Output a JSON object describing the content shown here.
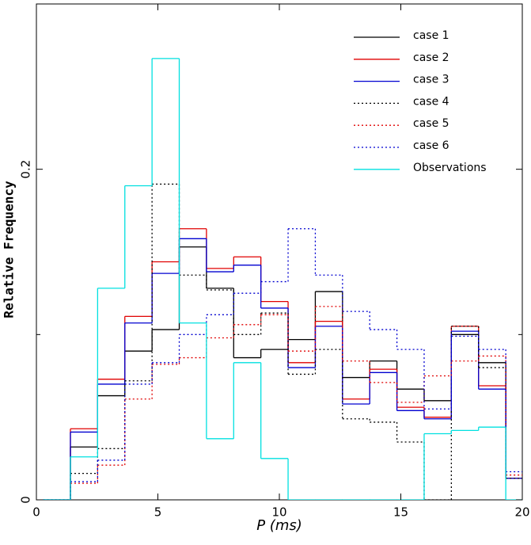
{
  "chart_data": {
    "type": "histogram",
    "xlabel": "P (ms)",
    "ylabel": "Relative Frequency",
    "bins": [
      0.28,
      1.4,
      2.52,
      3.64,
      4.76,
      5.88,
      7.0,
      8.12,
      9.24,
      10.36,
      11.48,
      12.6,
      13.72,
      14.84,
      15.96,
      17.08,
      18.2,
      19.32,
      20.44
    ],
    "series": [
      {
        "name": "case 1",
        "color": "#000000",
        "style": "solid",
        "values": [
          0,
          0.032,
          0.063,
          0.09,
          0.103,
          0.153,
          0.128,
          0.086,
          0.091,
          0.097,
          0.126,
          0.074,
          0.084,
          0.067,
          0.06,
          0.1,
          0.083,
          0.013
        ]
      },
      {
        "name": "case 2",
        "color": "#e00000",
        "style": "solid",
        "values": [
          0,
          0.043,
          0.073,
          0.111,
          0.144,
          0.164,
          0.14,
          0.147,
          0.12,
          0.083,
          0.108,
          0.061,
          0.079,
          0.056,
          0.05,
          0.105,
          0.069,
          0.013
        ]
      },
      {
        "name": "case 3",
        "color": "#0000d0",
        "style": "solid",
        "values": [
          0,
          0.041,
          0.07,
          0.107,
          0.137,
          0.158,
          0.138,
          0.142,
          0.116,
          0.08,
          0.105,
          0.058,
          0.077,
          0.054,
          0.049,
          0.102,
          0.067,
          0.013
        ]
      },
      {
        "name": "case 4",
        "color": "#000000",
        "style": "dotted",
        "values": [
          0,
          0.016,
          0.031,
          0.072,
          0.191,
          0.136,
          0.127,
          0.1,
          0.113,
          0.076,
          0.091,
          0.049,
          0.047,
          0.035,
          0,
          0.105,
          0.08,
          0.013
        ]
      },
      {
        "name": "case 5",
        "color": "#e00000",
        "style": "dotted",
        "values": [
          0,
          0.01,
          0.021,
          0.061,
          0.082,
          0.086,
          0.098,
          0.106,
          0.112,
          0.09,
          0.117,
          0.084,
          0.071,
          0.059,
          0.075,
          0.084,
          0.087,
          0.015
        ]
      },
      {
        "name": "case 6",
        "color": "#0000d0",
        "style": "dotted",
        "values": [
          0,
          0.011,
          0.024,
          0.07,
          0.083,
          0.1,
          0.112,
          0.125,
          0.132,
          0.164,
          0.136,
          0.114,
          0.103,
          0.091,
          0.055,
          0.099,
          0.091,
          0.017
        ]
      },
      {
        "name": "Observations",
        "color": "#00e0e0",
        "style": "solid",
        "values": [
          0,
          0.026,
          0.128,
          0.19,
          0.267,
          0.107,
          0.037,
          0.083,
          0.025,
          0,
          0,
          0,
          0,
          0,
          0.04,
          0.042,
          0.044,
          0
        ]
      }
    ],
    "xlim": [
      0,
      20
    ],
    "xticks": [
      0,
      5,
      10,
      15,
      20
    ],
    "ylim": [
      0,
      0.3
    ],
    "yticks": [
      0,
      0.2
    ],
    "y_minor_ticks": [
      0.1
    ],
    "legend": "upper right"
  }
}
